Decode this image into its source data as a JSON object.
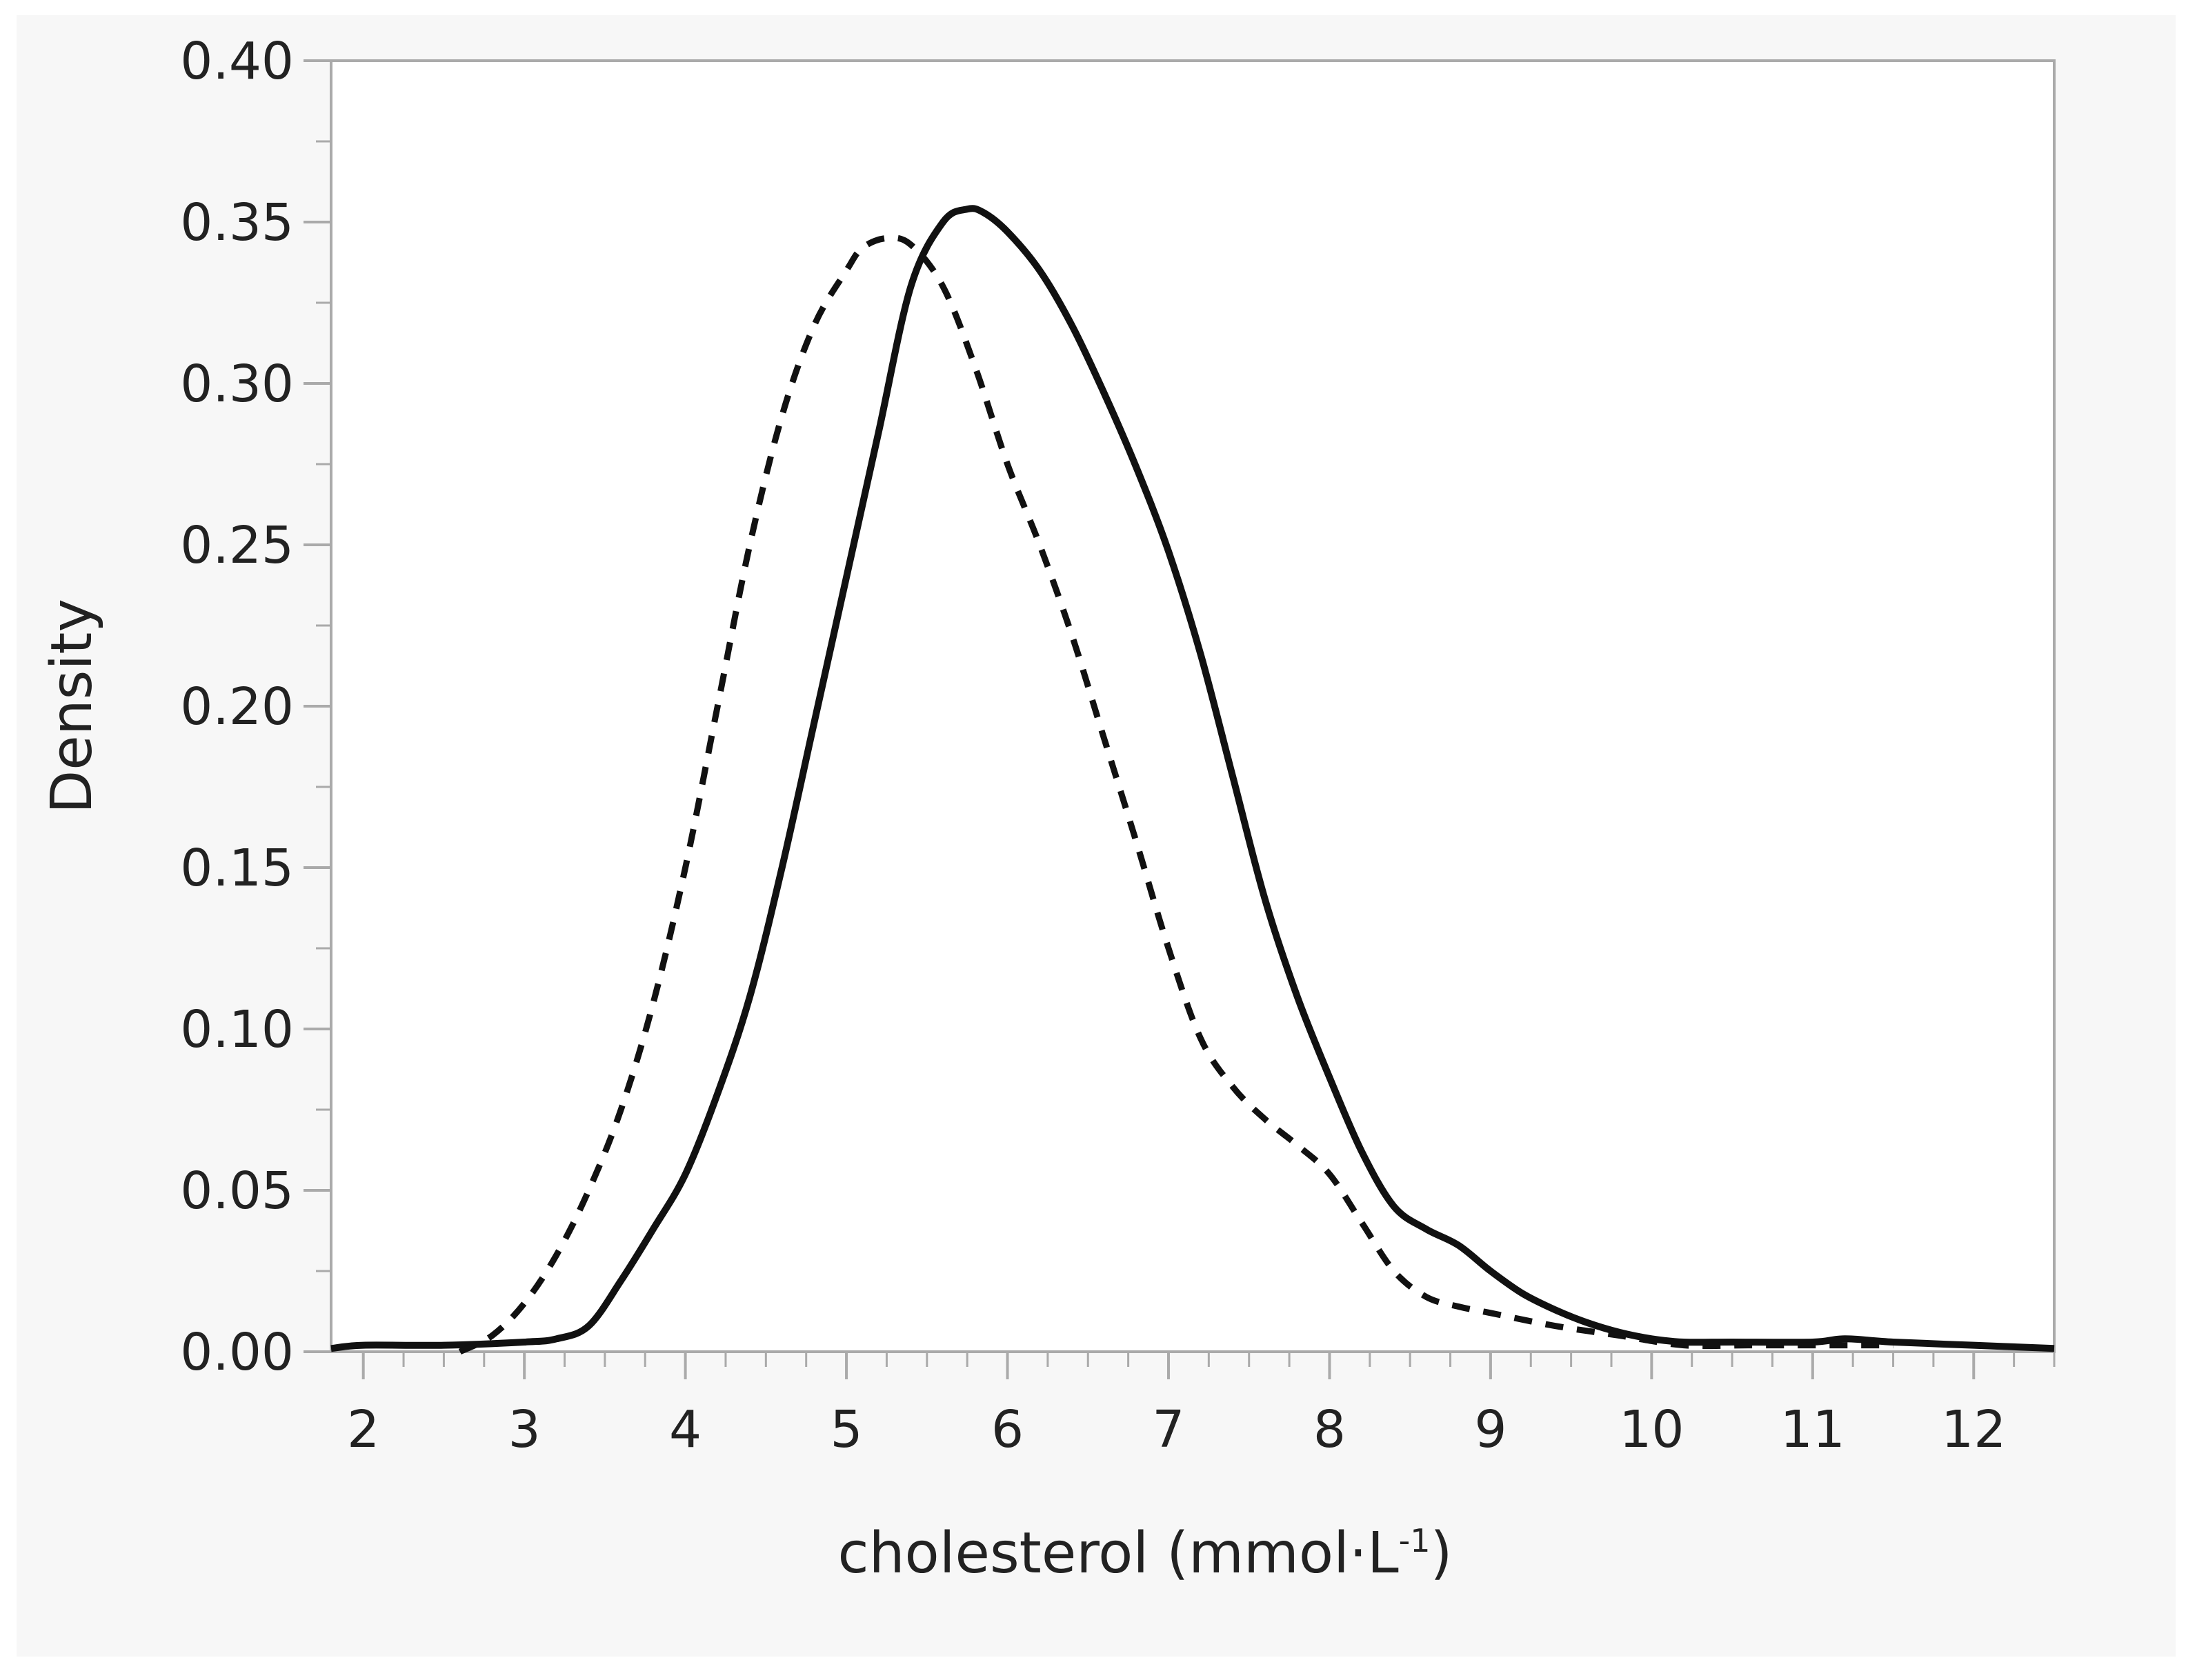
{
  "chart_data": {
    "type": "line",
    "title": "",
    "xlabel": "cholesterol (mmol·L",
    "xlabel_superscript": "-1",
    "xlabel_close": ")",
    "ylabel": "Density",
    "xlim": [
      1.8,
      12.5
    ],
    "ylim": [
      0,
      0.4
    ],
    "x_ticks": [
      2,
      3,
      4,
      5,
      6,
      7,
      8,
      9,
      10,
      11,
      12
    ],
    "x_tick_labels": [
      "2",
      "3",
      "4",
      "5",
      "6",
      "7",
      "8",
      "9",
      "10",
      "11",
      "12"
    ],
    "y_ticks": [
      0,
      0.05,
      0.1,
      0.15,
      0.2,
      0.25,
      0.3,
      0.35,
      0.4
    ],
    "y_tick_labels": [
      "0.00",
      "0.05",
      "0.10",
      "0.15",
      "0.20",
      "0.25",
      "0.30",
      "0.35",
      "0.40"
    ],
    "grid": false,
    "legend": null,
    "colors": {
      "line": "#111111",
      "axis": "#aaaaaa",
      "panel": "#f7f7f7",
      "plot": "#ffffff"
    },
    "series": [
      {
        "name": "solid",
        "style": "solid",
        "x": [
          1.8,
          2.0,
          2.5,
          3.0,
          3.2,
          3.4,
          3.6,
          3.8,
          4.0,
          4.2,
          4.4,
          4.6,
          4.8,
          5.0,
          5.2,
          5.4,
          5.6,
          5.75,
          5.85,
          6.0,
          6.2,
          6.4,
          6.6,
          6.8,
          7.0,
          7.2,
          7.4,
          7.6,
          7.8,
          8.0,
          8.2,
          8.4,
          8.6,
          8.8,
          9.0,
          9.2,
          9.4,
          9.6,
          9.8,
          10.0,
          10.2,
          10.5,
          11.0,
          11.2,
          11.5,
          12.0,
          12.5
        ],
        "y": [
          0.001,
          0.002,
          0.002,
          0.003,
          0.004,
          0.008,
          0.022,
          0.038,
          0.055,
          0.08,
          0.11,
          0.15,
          0.195,
          0.24,
          0.285,
          0.33,
          0.35,
          0.354,
          0.353,
          0.347,
          0.335,
          0.318,
          0.297,
          0.274,
          0.248,
          0.216,
          0.178,
          0.14,
          0.11,
          0.085,
          0.062,
          0.045,
          0.038,
          0.033,
          0.025,
          0.018,
          0.013,
          0.009,
          0.006,
          0.004,
          0.003,
          0.003,
          0.003,
          0.004,
          0.003,
          0.002,
          0.001
        ]
      },
      {
        "name": "dashed",
        "style": "dashed",
        "x": [
          2.6,
          2.8,
          3.0,
          3.2,
          3.4,
          3.6,
          3.8,
          4.0,
          4.2,
          4.4,
          4.6,
          4.8,
          5.0,
          5.1,
          5.25,
          5.4,
          5.6,
          5.8,
          6.0,
          6.2,
          6.4,
          6.6,
          6.8,
          7.0,
          7.2,
          7.4,
          7.6,
          7.8,
          8.0,
          8.2,
          8.4,
          8.6,
          8.8,
          9.0,
          9.4,
          9.8,
          10.2,
          10.6,
          11.0,
          11.3,
          11.5
        ],
        "y": [
          0.0,
          0.005,
          0.015,
          0.03,
          0.05,
          0.075,
          0.108,
          0.15,
          0.2,
          0.25,
          0.29,
          0.318,
          0.335,
          0.342,
          0.345,
          0.343,
          0.33,
          0.305,
          0.275,
          0.25,
          0.222,
          0.19,
          0.158,
          0.125,
          0.097,
          0.082,
          0.072,
          0.064,
          0.055,
          0.04,
          0.025,
          0.017,
          0.014,
          0.012,
          0.008,
          0.005,
          0.002,
          0.002,
          0.002,
          0.002,
          0.002
        ]
      }
    ]
  }
}
